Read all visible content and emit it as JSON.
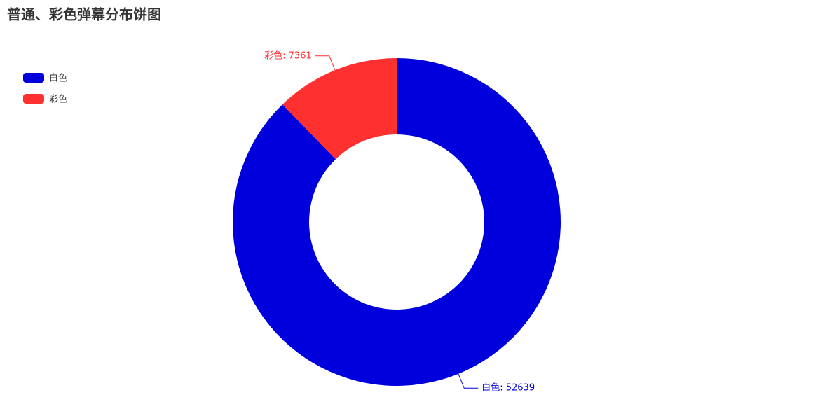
{
  "chart_data": {
    "type": "pie",
    "title": "普通、彩色弹幕分布饼图",
    "categories": [
      "白色",
      "彩色"
    ],
    "values": [
      52639,
      7361
    ],
    "value_labels": [
      "白色: 52639",
      "彩色: 7361"
    ],
    "colors": [
      "#0000dd",
      "#ff3030"
    ],
    "legend": "top-left"
  }
}
